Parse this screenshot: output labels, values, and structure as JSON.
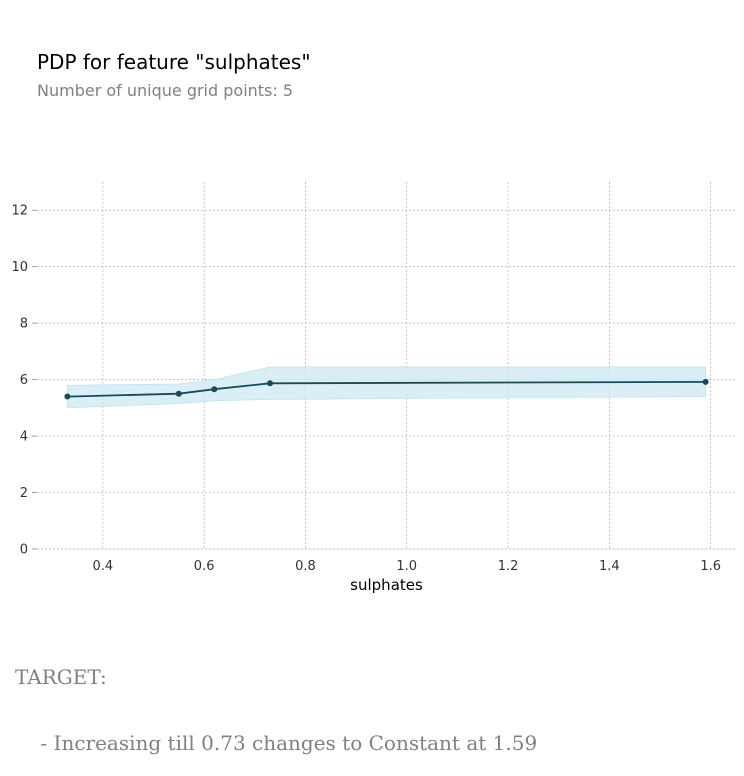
{
  "header": {
    "title": "PDP for feature \"sulphates\"",
    "subtitle": "Number of unique grid points: 5"
  },
  "chart_data": {
    "type": "line",
    "title": "",
    "xlabel": "sulphates",
    "ylabel": "",
    "xlim": [
      0.27,
      1.65
    ],
    "ylim": [
      0,
      13
    ],
    "x_ticks": [
      0.4,
      0.6,
      0.8,
      1.0,
      1.2,
      1.4,
      1.6
    ],
    "x_tick_labels": [
      "0.4",
      "0.6",
      "0.8",
      "1.0",
      "1.2",
      "1.4",
      "1.6"
    ],
    "y_ticks": [
      0,
      2,
      4,
      6,
      8,
      10,
      12
    ],
    "y_tick_labels": [
      "0",
      "2",
      "4",
      "6",
      "8",
      "10",
      "12"
    ],
    "grid": true,
    "series": [
      {
        "x": [
          0.33,
          0.55,
          0.62,
          0.73,
          1.59
        ],
        "values": [
          5.4,
          5.5,
          5.66,
          5.87,
          5.92
        ],
        "upper": [
          5.8,
          5.85,
          6.0,
          6.45,
          6.45
        ],
        "lower": [
          5.0,
          5.15,
          5.25,
          5.3,
          5.4
        ]
      }
    ],
    "colors": {
      "line": "#1a4a5c",
      "band": "#cfeaf3",
      "grid": "#b0b0b0"
    }
  },
  "footer": {
    "label": "TARGET:",
    "description": "    - Increasing till 0.73 changes to Constant at 1.59"
  }
}
